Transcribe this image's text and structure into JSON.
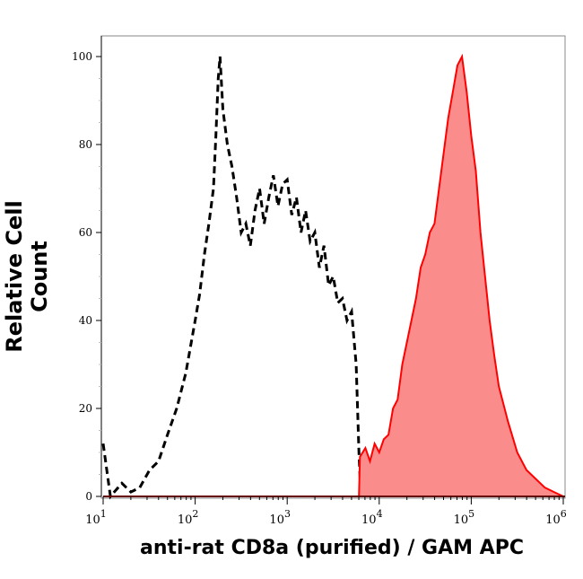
{
  "chart_data": {
    "type": "area",
    "title": "",
    "xlabel": "anti-rat CD8a (purified)  / GAM APC",
    "ylabel": "Relative Cell Count",
    "xscale": "log",
    "xlim": [
      10,
      1000000
    ],
    "ylim": [
      0,
      100
    ],
    "xticks": [
      {
        "base": "10",
        "exp": "1"
      },
      {
        "base": "10",
        "exp": "2"
      },
      {
        "base": "10",
        "exp": "3"
      },
      {
        "base": "10",
        "exp": "4"
      },
      {
        "base": "10",
        "exp": "5"
      },
      {
        "base": "10",
        "exp": "6"
      }
    ],
    "yticks": [
      0,
      20,
      40,
      60,
      80,
      100
    ],
    "grid": false,
    "series": [
      {
        "style": "dashed",
        "color": "#000000",
        "fill": "none",
        "x": [
          10,
          12,
          16,
          20,
          25,
          32,
          40,
          50,
          63,
          79,
          100,
          112,
          126,
          141,
          158,
          168,
          178,
          186,
          200,
          224,
          251,
          282,
          316,
          355,
          398,
          447,
          501,
          562,
          631,
          708,
          794,
          891,
          1000,
          1122,
          1259,
          1413,
          1585,
          1778,
          1995,
          2239,
          2512,
          2818,
          3162,
          3548,
          3981,
          4467,
          5012,
          5623,
          6026,
          6310
        ],
        "y": [
          12,
          0,
          3,
          1,
          2,
          6,
          8,
          14,
          20,
          28,
          40,
          46,
          55,
          62,
          70,
          82,
          95,
          100,
          88,
          80,
          75,
          68,
          60,
          62,
          57,
          65,
          70,
          62,
          68,
          73,
          66,
          71,
          72,
          64,
          68,
          60,
          65,
          58,
          60,
          52,
          57,
          48,
          50,
          44,
          45,
          40,
          42,
          30,
          10,
          0
        ]
      },
      {
        "style": "solid",
        "color": "#ff0000",
        "fill": "#fa8c8c",
        "x": [
          6026,
          6166,
          7079,
          7943,
          8913,
          10000,
          11220,
          12589,
          14125,
          15849,
          17783,
          19953,
          22387,
          25119,
          28184,
          31623,
          35481,
          39811,
          44668,
          50119,
          56234,
          63096,
          70795,
          79433,
          89125,
          100000,
          112202,
          125893,
          141254,
          158489,
          177828,
          199526,
          251189,
          316228,
          398107,
          501187,
          630957,
          794328,
          1000000
        ],
        "y": [
          0,
          9,
          11,
          8,
          12,
          10,
          13,
          14,
          20,
          22,
          30,
          35,
          40,
          45,
          52,
          55,
          60,
          62,
          70,
          78,
          86,
          92,
          98,
          100,
          92,
          82,
          74,
          60,
          50,
          40,
          32,
          25,
          17,
          10,
          6,
          4,
          2,
          1,
          0
        ]
      }
    ]
  }
}
